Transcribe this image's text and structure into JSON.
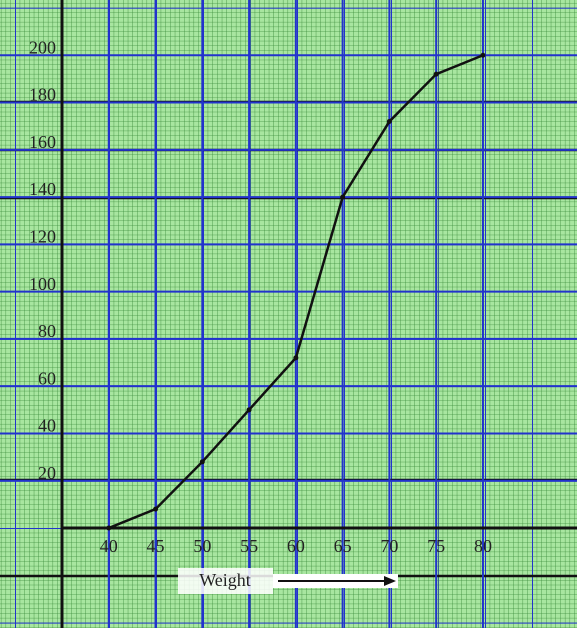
{
  "chart_data": {
    "type": "line",
    "x": [
      40,
      45,
      50,
      55,
      60,
      65,
      70,
      75,
      80
    ],
    "values": [
      0,
      8,
      28,
      50,
      72,
      140,
      172,
      192,
      200
    ],
    "color": "#111111",
    "xlabel": "Weight",
    "xlim": [
      35,
      90
    ],
    "xticks": [
      40,
      45,
      50,
      55,
      60,
      65,
      70,
      75,
      80
    ],
    "ylim": [
      0,
      220
    ],
    "yticks": [
      20,
      40,
      60,
      80,
      100,
      120,
      140,
      160,
      180,
      200
    ],
    "grid": true
  }
}
